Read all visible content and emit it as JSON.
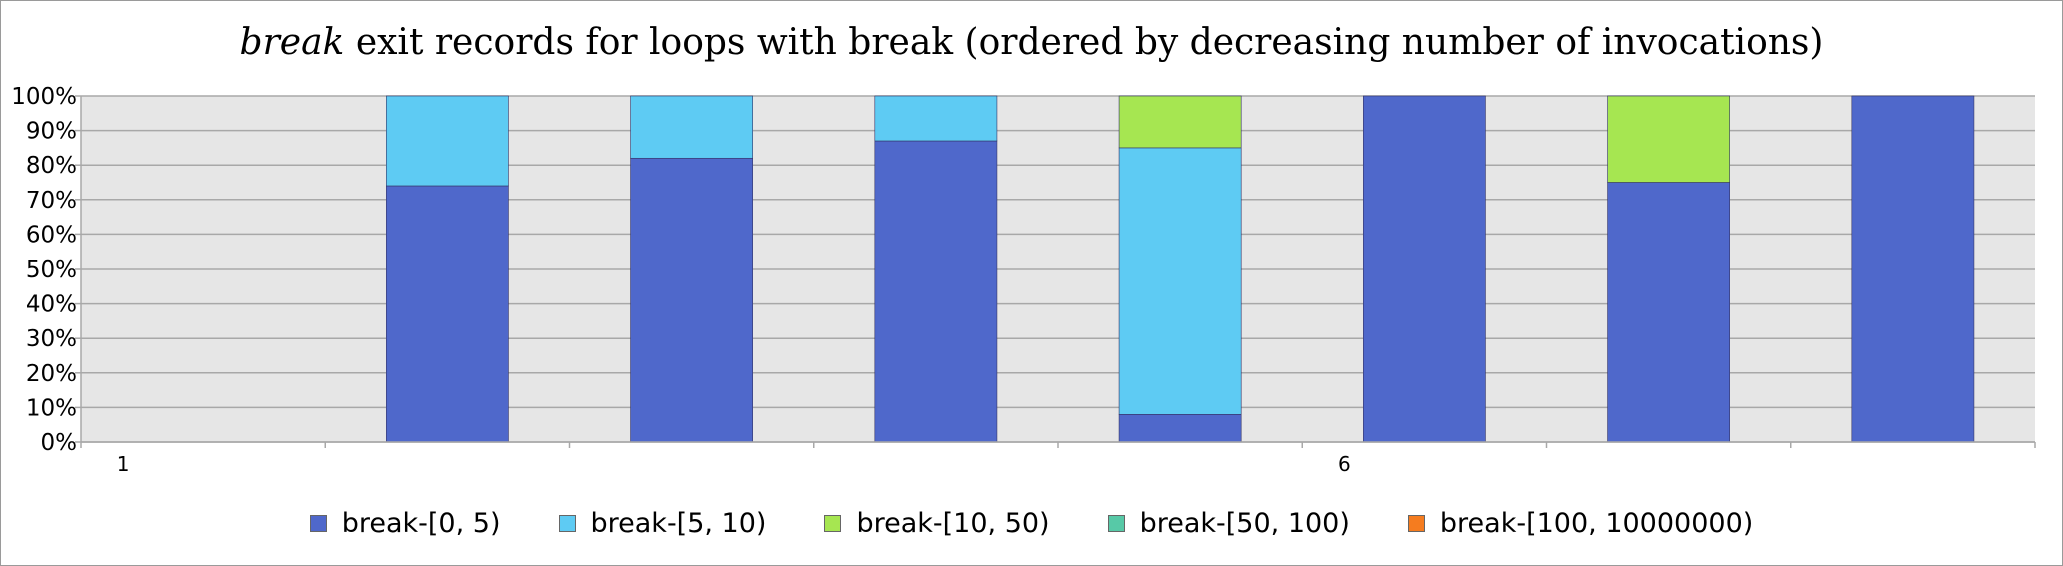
{
  "chart_data": {
    "type": "bar",
    "stacked": true,
    "title_em": "break",
    "title_rest": " exit records for loops with break (ordered by decreasing number of invocations)",
    "xlabel": "",
    "ylabel": "",
    "ylim": [
      0,
      100
    ],
    "y_ticks": [
      "0%",
      "10%",
      "20%",
      "30%",
      "40%",
      "50%",
      "60%",
      "70%",
      "80%",
      "90%",
      "100%"
    ],
    "x": [
      1,
      2,
      3,
      4,
      5,
      6,
      7,
      8
    ],
    "x_tick_labels": [
      "1",
      "",
      "",
      "",
      "",
      "6",
      "",
      ""
    ],
    "grid": true,
    "legend_position": "bottom",
    "series": [
      {
        "name": "break-[0, 5)",
        "color": "#4f68cb",
        "values": [
          0,
          74,
          82,
          87,
          8,
          100,
          75,
          100
        ]
      },
      {
        "name": "break-[5, 10)",
        "color": "#5ecbf3",
        "values": [
          0,
          26,
          18,
          13,
          77,
          0,
          0,
          0
        ]
      },
      {
        "name": "break-[10, 50)",
        "color": "#a6e651",
        "values": [
          0,
          0,
          0,
          0,
          15,
          0,
          25,
          0
        ]
      },
      {
        "name": "break-[50, 100)",
        "color": "#57c9a7",
        "values": [
          0,
          0,
          0,
          0,
          0,
          0,
          0,
          0
        ]
      },
      {
        "name": "break-[100, 10000000)",
        "color": "#f57c1f",
        "values": [
          0,
          0,
          0,
          0,
          0,
          0,
          0,
          0
        ]
      }
    ]
  }
}
